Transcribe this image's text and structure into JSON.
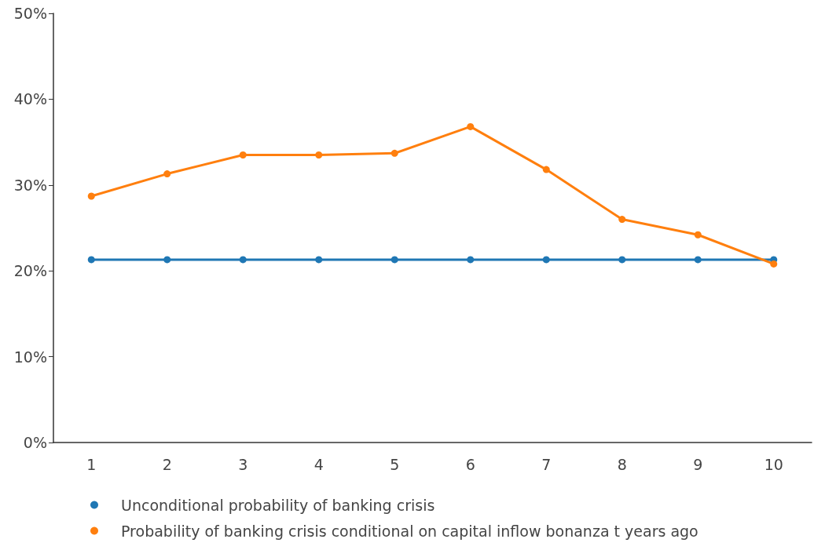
{
  "chart_data": {
    "type": "line",
    "categories": [
      "1",
      "2",
      "3",
      "4",
      "5",
      "6",
      "7",
      "8",
      "9",
      "10"
    ],
    "series": [
      {
        "name": "Unconditional probability of banking crisis",
        "color": "#1f77b4",
        "values": [
          21.3,
          21.3,
          21.3,
          21.3,
          21.3,
          21.3,
          21.3,
          21.3,
          21.3,
          21.3
        ]
      },
      {
        "name": "Probability of banking crisis conditional on capital inflow bonanza t years ago",
        "color": "#ff7f0e",
        "values": [
          28.7,
          31.3,
          33.5,
          33.5,
          33.7,
          36.8,
          31.8,
          26.0,
          24.2,
          20.8
        ]
      }
    ],
    "ylim": [
      0,
      50
    ],
    "yticks": [
      {
        "value": 0,
        "label": "0%"
      },
      {
        "value": 10,
        "label": "10%"
      },
      {
        "value": 20,
        "label": "20%"
      },
      {
        "value": 30,
        "label": "30%"
      },
      {
        "value": 40,
        "label": "40%"
      },
      {
        "value": 50,
        "label": "50%"
      }
    ],
    "grid": false,
    "legend": "bottom",
    "marker": "circle",
    "line_style": "solid"
  }
}
